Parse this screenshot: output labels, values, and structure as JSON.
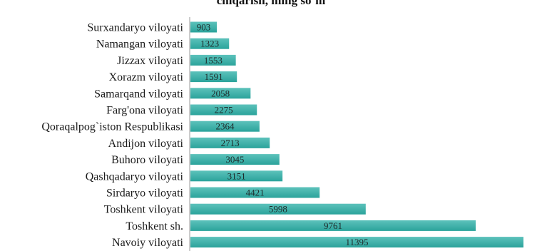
{
  "chart_data": {
    "type": "bar",
    "orientation": "horizontal",
    "title": "chiqarish, ming so`m",
    "xlabel": "",
    "ylabel": "",
    "categories": [
      "Surxandaryo viloyati",
      "Namangan viloyati",
      "Jizzax viloyati",
      "Xorazm viloyati",
      "Samarqand viloyati",
      "Farg'ona viloyati",
      "Qoraqalpog`iston Respublikasi",
      "Andijon viloyati",
      "Buhoro viloyati",
      "Qashqadaryo viloyati",
      "Sirdaryo viloyati",
      "Toshkent viloyati",
      "Toshkent sh.",
      "Navoiy viloyati"
    ],
    "values": [
      903,
      1323,
      1553,
      1591,
      2058,
      2275,
      2364,
      2713,
      3045,
      3151,
      4421,
      5998,
      9761,
      11395
    ],
    "xlim": [
      0,
      11395
    ],
    "grid": false,
    "legend": "none",
    "bar_color": "#2ba39b",
    "bar_color_light": "#5cc2bb"
  }
}
